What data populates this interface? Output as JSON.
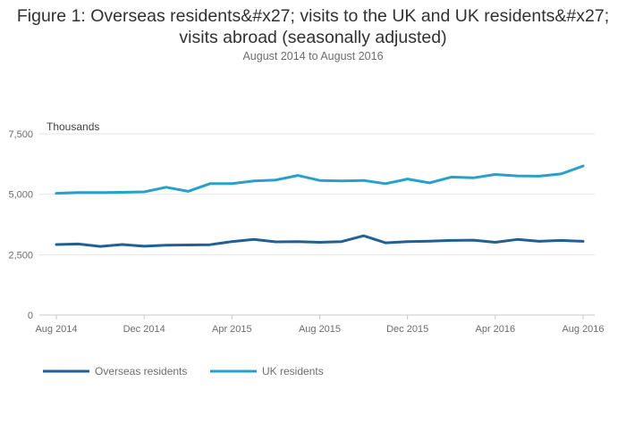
{
  "title": "Figure 1: Overseas residents&#x27; visits to the UK and UK residents&#x27; visits abroad (seasonally adjusted)",
  "subtitle": "August 2014 to August 2016",
  "chart_data": {
    "type": "line",
    "title": "Figure 1: Overseas residents&#x27; visits to the UK and UK residents&#x27; visits abroad (seasonally adjusted)",
    "subtitle": "August 2014 to August 2016",
    "ylabel": "Thousands",
    "xlabel": "",
    "ylim": [
      0,
      7500
    ],
    "yticks": [
      0,
      2500,
      5000,
      7500
    ],
    "ytick_labels": [
      "0",
      "2,500",
      "5,000",
      "7,500"
    ],
    "xtick_labels": [
      "Aug 2014",
      "Dec 2014",
      "Apr 2015",
      "Aug 2015",
      "Dec 2015",
      "Apr 2016",
      "Aug 2016"
    ],
    "x": [
      "Aug 2014",
      "Sep 2014",
      "Oct 2014",
      "Nov 2014",
      "Dec 2014",
      "Jan 2015",
      "Feb 2015",
      "Mar 2015",
      "Apr 2015",
      "May 2015",
      "Jun 2015",
      "Jul 2015",
      "Aug 2015",
      "Sep 2015",
      "Oct 2015",
      "Nov 2015",
      "Dec 2015",
      "Jan 2016",
      "Feb 2016",
      "Mar 2016",
      "Apr 2016",
      "May 2016",
      "Jun 2016",
      "Jul 2016",
      "Aug 2016"
    ],
    "grid": true,
    "legend_position": "bottom-left",
    "series": [
      {
        "name": "Overseas residents",
        "color": "#206095",
        "values": [
          2920,
          2940,
          2840,
          2920,
          2850,
          2890,
          2900,
          2910,
          3040,
          3130,
          3030,
          3040,
          3010,
          3040,
          3280,
          2990,
          3040,
          3060,
          3090,
          3100,
          3010,
          3130,
          3050,
          3090,
          3050
        ]
      },
      {
        "name": "UK residents",
        "color": "#27a0cc",
        "values": [
          5040,
          5070,
          5070,
          5080,
          5100,
          5290,
          5120,
          5440,
          5440,
          5550,
          5590,
          5780,
          5570,
          5550,
          5570,
          5440,
          5630,
          5470,
          5710,
          5680,
          5820,
          5760,
          5750,
          5840,
          6170
        ]
      }
    ]
  }
}
